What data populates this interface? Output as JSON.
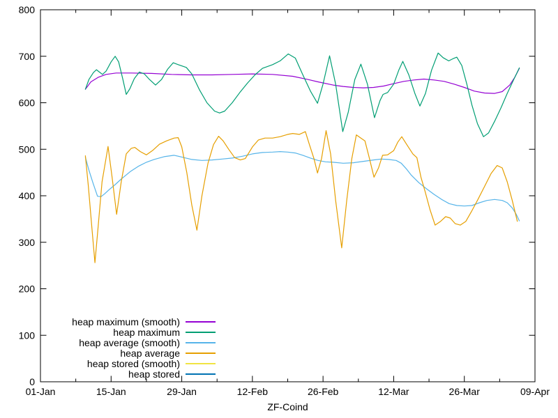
{
  "chart_data": {
    "type": "line",
    "title": "",
    "xlabel": "ZF-Coind",
    "ylabel": "",
    "grid": false,
    "legend_position": "bottom-left-inside",
    "axis_color": "#000000",
    "background_color": "#ffffff",
    "xlim": [
      0,
      98
    ],
    "ylim": [
      0,
      800
    ],
    "x_ticks": [
      {
        "pos": 0,
        "label": "01-Jan"
      },
      {
        "pos": 14,
        "label": "15-Jan"
      },
      {
        "pos": 28,
        "label": "29-Jan"
      },
      {
        "pos": 42,
        "label": "12-Feb"
      },
      {
        "pos": 56,
        "label": "26-Feb"
      },
      {
        "pos": 70,
        "label": "12-Mar"
      },
      {
        "pos": 84,
        "label": "26-Mar"
      },
      {
        "pos": 98,
        "label": "09-Apr"
      }
    ],
    "x_minor_ticks": [
      7,
      21,
      35,
      49,
      63,
      77,
      91
    ],
    "y_ticks": [
      {
        "pos": 0,
        "label": "0"
      },
      {
        "pos": 100,
        "label": "100"
      },
      {
        "pos": 200,
        "label": "200"
      },
      {
        "pos": 300,
        "label": "300"
      },
      {
        "pos": 400,
        "label": "400"
      },
      {
        "pos": 500,
        "label": "500"
      },
      {
        "pos": 600,
        "label": "600"
      },
      {
        "pos": 700,
        "label": "700"
      },
      {
        "pos": 800,
        "label": "800"
      }
    ],
    "series": [
      {
        "name": "heap maximum (smooth)",
        "color": "#9400D3",
        "points": [
          [
            8.9,
            629
          ],
          [
            10,
            645
          ],
          [
            11.5,
            655
          ],
          [
            13,
            661
          ],
          [
            15,
            664
          ],
          [
            18,
            664
          ],
          [
            22,
            663
          ],
          [
            26,
            661
          ],
          [
            30,
            660
          ],
          [
            34,
            660
          ],
          [
            38,
            661
          ],
          [
            42,
            662
          ],
          [
            46,
            661
          ],
          [
            50,
            657
          ],
          [
            53,
            650
          ],
          [
            55,
            645
          ],
          [
            58,
            638
          ],
          [
            60,
            635
          ],
          [
            62,
            633
          ],
          [
            64,
            632
          ],
          [
            66,
            633
          ],
          [
            68,
            636
          ],
          [
            70,
            641
          ],
          [
            72,
            646
          ],
          [
            74,
            649
          ],
          [
            76,
            651
          ],
          [
            78,
            649
          ],
          [
            80,
            646
          ],
          [
            82,
            640
          ],
          [
            84,
            633
          ],
          [
            86,
            625
          ],
          [
            88,
            621
          ],
          [
            90,
            620
          ],
          [
            91.5,
            624
          ],
          [
            93,
            638
          ],
          [
            94,
            655
          ],
          [
            94.9,
            674
          ]
        ]
      },
      {
        "name": "heap maximum",
        "color": "#009E73",
        "points": [
          [
            8.9,
            629
          ],
          [
            9.6,
            650
          ],
          [
            10.5,
            665
          ],
          [
            11.1,
            671
          ],
          [
            11.8,
            665
          ],
          [
            12.3,
            661
          ],
          [
            13,
            668
          ],
          [
            14,
            688
          ],
          [
            14.8,
            700
          ],
          [
            15.5,
            688
          ],
          [
            16.3,
            652
          ],
          [
            17,
            618
          ],
          [
            17.7,
            630
          ],
          [
            18.6,
            652
          ],
          [
            19.6,
            666
          ],
          [
            20.6,
            662
          ],
          [
            21.6,
            650
          ],
          [
            22.8,
            638
          ],
          [
            24,
            650
          ],
          [
            25.2,
            672
          ],
          [
            26.3,
            686
          ],
          [
            27.3,
            682
          ],
          [
            28.9,
            676
          ],
          [
            30,
            662
          ],
          [
            31.5,
            628
          ],
          [
            33,
            600
          ],
          [
            34.5,
            582
          ],
          [
            35.5,
            578
          ],
          [
            36.5,
            582
          ],
          [
            38,
            600
          ],
          [
            39.5,
            622
          ],
          [
            41,
            642
          ],
          [
            42.5,
            660
          ],
          [
            44,
            674
          ],
          [
            46,
            682
          ],
          [
            47.5,
            690
          ],
          [
            49.1,
            705
          ],
          [
            50.5,
            696
          ],
          [
            52,
            660
          ],
          [
            53.5,
            625
          ],
          [
            54.9,
            599
          ],
          [
            56,
            640
          ],
          [
            57.3,
            701
          ],
          [
            58.5,
            640
          ],
          [
            59.9,
            538
          ],
          [
            61,
            580
          ],
          [
            62.3,
            650
          ],
          [
            63.5,
            683
          ],
          [
            64.8,
            640
          ],
          [
            66.2,
            568
          ],
          [
            67.3,
            605
          ],
          [
            67.9,
            618
          ],
          [
            68.8,
            622
          ],
          [
            70,
            640
          ],
          [
            71,
            670
          ],
          [
            71.8,
            689
          ],
          [
            73,
            660
          ],
          [
            74.2,
            620
          ],
          [
            75.2,
            593
          ],
          [
            76.3,
            620
          ],
          [
            77.5,
            670
          ],
          [
            78.8,
            707
          ],
          [
            79.8,
            697
          ],
          [
            80.9,
            690
          ],
          [
            81.8,
            695
          ],
          [
            82.5,
            698
          ],
          [
            83.5,
            680
          ],
          [
            84.5,
            640
          ],
          [
            85.5,
            595
          ],
          [
            86.6,
            555
          ],
          [
            87.8,
            527
          ],
          [
            88.8,
            535
          ],
          [
            90,
            560
          ],
          [
            91.3,
            590
          ],
          [
            92.5,
            620
          ],
          [
            93.7,
            648
          ],
          [
            94.9,
            675
          ]
        ]
      },
      {
        "name": "heap average (smooth)",
        "color": "#56B4E9",
        "points": [
          [
            8.9,
            483
          ],
          [
            9.6,
            455
          ],
          [
            10.4,
            428
          ],
          [
            11.3,
            399
          ],
          [
            12,
            398
          ],
          [
            12.7,
            404
          ],
          [
            13.6,
            413
          ],
          [
            14.8,
            424
          ],
          [
            16,
            436
          ],
          [
            17.8,
            452
          ],
          [
            19.5,
            464
          ],
          [
            21,
            472
          ],
          [
            22.5,
            478
          ],
          [
            24.5,
            484
          ],
          [
            26.5,
            487
          ],
          [
            28.5,
            482
          ],
          [
            30,
            478
          ],
          [
            32,
            476
          ],
          [
            34,
            477
          ],
          [
            36,
            479
          ],
          [
            38,
            481
          ],
          [
            40,
            485
          ],
          [
            42,
            490
          ],
          [
            44,
            493
          ],
          [
            46,
            494
          ],
          [
            47.5,
            495
          ],
          [
            49,
            494
          ],
          [
            50.5,
            492
          ],
          [
            52,
            487
          ],
          [
            53.5,
            481
          ],
          [
            55,
            476
          ],
          [
            56.5,
            473
          ],
          [
            58,
            472
          ],
          [
            60,
            470
          ],
          [
            62,
            471
          ],
          [
            64,
            474
          ],
          [
            66,
            477
          ],
          [
            67.5,
            479
          ],
          [
            69,
            478
          ],
          [
            70.5,
            476
          ],
          [
            71.5,
            470
          ],
          [
            72.5,
            458
          ],
          [
            73.5,
            444
          ],
          [
            75,
            428
          ],
          [
            76.5,
            415
          ],
          [
            78,
            403
          ],
          [
            79.5,
            392
          ],
          [
            81,
            383
          ],
          [
            82.5,
            379
          ],
          [
            84,
            378
          ],
          [
            85.5,
            379
          ],
          [
            87,
            385
          ],
          [
            88.5,
            390
          ],
          [
            90,
            392
          ],
          [
            91.5,
            390
          ],
          [
            92.5,
            385
          ],
          [
            93.5,
            374
          ],
          [
            94.3,
            360
          ],
          [
            94.9,
            346
          ]
        ]
      },
      {
        "name": "heap average",
        "color": "#E69F00",
        "points": [
          [
            8.9,
            486
          ],
          [
            9.5,
            420
          ],
          [
            10.2,
            330
          ],
          [
            10.8,
            256
          ],
          [
            11.4,
            330
          ],
          [
            12.2,
            430
          ],
          [
            13.4,
            506
          ],
          [
            14.2,
            440
          ],
          [
            15.1,
            360
          ],
          [
            16,
            430
          ],
          [
            17,
            490
          ],
          [
            18,
            502
          ],
          [
            18.7,
            504
          ],
          [
            19.8,
            495
          ],
          [
            21,
            488
          ],
          [
            22.3,
            498
          ],
          [
            23.6,
            511
          ],
          [
            25,
            518
          ],
          [
            26.5,
            524
          ],
          [
            27.3,
            525
          ],
          [
            28,
            505
          ],
          [
            29,
            450
          ],
          [
            30,
            380
          ],
          [
            31,
            326
          ],
          [
            32,
            400
          ],
          [
            33.2,
            470
          ],
          [
            34.3,
            510
          ],
          [
            35.3,
            528
          ],
          [
            36.2,
            518
          ],
          [
            37.3,
            500
          ],
          [
            38.5,
            482
          ],
          [
            39.6,
            477
          ],
          [
            40.6,
            480
          ],
          [
            42,
            505
          ],
          [
            43.2,
            520
          ],
          [
            44.5,
            524
          ],
          [
            46,
            524
          ],
          [
            47.5,
            527
          ],
          [
            49,
            532
          ],
          [
            50,
            534
          ],
          [
            51.3,
            532
          ],
          [
            52.5,
            538
          ],
          [
            53.3,
            510
          ],
          [
            54.2,
            480
          ],
          [
            54.9,
            449
          ],
          [
            55.7,
            480
          ],
          [
            56.6,
            540
          ],
          [
            57.5,
            490
          ],
          [
            58.5,
            390
          ],
          [
            59.7,
            288
          ],
          [
            60.7,
            390
          ],
          [
            61.7,
            480
          ],
          [
            62.6,
            531
          ],
          [
            63.5,
            524
          ],
          [
            64.3,
            518
          ],
          [
            65.2,
            480
          ],
          [
            66.1,
            440
          ],
          [
            67,
            460
          ],
          [
            67.8,
            487
          ],
          [
            68.8,
            488
          ],
          [
            70,
            497
          ],
          [
            70.8,
            515
          ],
          [
            71.6,
            527
          ],
          [
            72.6,
            510
          ],
          [
            73.8,
            490
          ],
          [
            74.6,
            482
          ],
          [
            75.4,
            440
          ],
          [
            76.2,
            410
          ],
          [
            77.2,
            370
          ],
          [
            78.2,
            337
          ],
          [
            79.3,
            345
          ],
          [
            80.3,
            355
          ],
          [
            81.2,
            352
          ],
          [
            82.2,
            340
          ],
          [
            83.2,
            337
          ],
          [
            84.3,
            345
          ],
          [
            85.5,
            368
          ],
          [
            86.7,
            392
          ],
          [
            88,
            420
          ],
          [
            89.3,
            448
          ],
          [
            90.5,
            465
          ],
          [
            91.5,
            460
          ],
          [
            92.5,
            430
          ],
          [
            93.5,
            390
          ],
          [
            94.5,
            345
          ]
        ]
      },
      {
        "name": "heap stored (smooth)",
        "color": "#F0E442",
        "points": []
      },
      {
        "name": "heap stored",
        "color": "#0072B2",
        "points": []
      }
    ]
  }
}
